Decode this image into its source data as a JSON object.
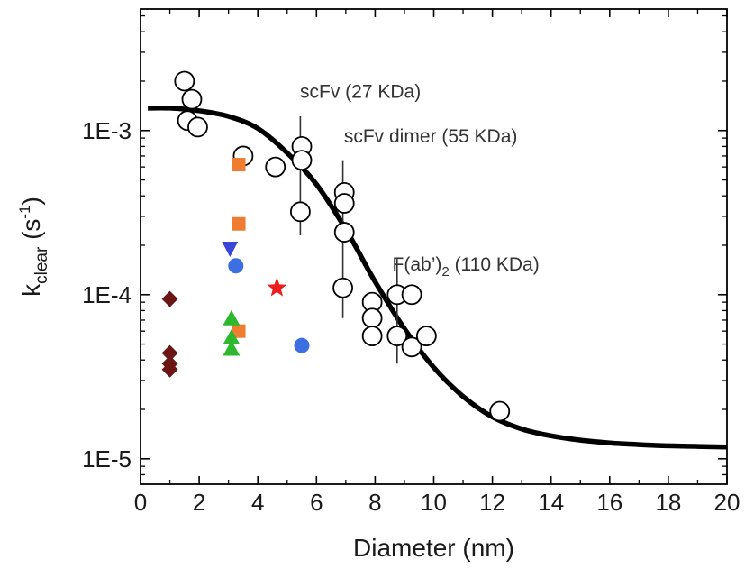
{
  "chart_data": {
    "type": "scatter",
    "title": "",
    "xlabel": "Diameter (nm)",
    "ylabel": {
      "main": "k",
      "sub": "clear",
      "units_pre": " (s",
      "units_sup": "-1",
      "units_post": ")"
    },
    "xlim": [
      0,
      20
    ],
    "ylim": [
      7e-06,
      0.0055
    ],
    "yscale": "log",
    "grid": false,
    "x_ticks": [
      0,
      2,
      4,
      6,
      8,
      10,
      12,
      14,
      16,
      18,
      20
    ],
    "x_tick_labels": [
      "0",
      "2",
      "4",
      "6",
      "8",
      "10",
      "12",
      "14",
      "16",
      "18",
      "20"
    ],
    "y_ticks": [
      1e-05,
      0.0001,
      0.001
    ],
    "y_tick_labels": [
      "1E-5",
      "1E-4",
      "1E-3"
    ],
    "fit_curve": {
      "color": "#000000",
      "points": [
        [
          0.25,
          0.00137
        ],
        [
          1,
          0.00137
        ],
        [
          2,
          0.00132
        ],
        [
          3,
          0.00122
        ],
        [
          4,
          0.00103
        ],
        [
          5,
          0.00073
        ],
        [
          6,
          0.00047
        ],
        [
          7,
          0.00025
        ],
        [
          8,
          0.00012
        ],
        [
          9,
          6.2e-05
        ],
        [
          10,
          3.6e-05
        ],
        [
          11,
          2.4e-05
        ],
        [
          12,
          1.8e-05
        ],
        [
          13,
          1.52e-05
        ],
        [
          14,
          1.38e-05
        ],
        [
          15,
          1.3e-05
        ],
        [
          16,
          1.25e-05
        ],
        [
          17,
          1.22e-05
        ],
        [
          18,
          1.2e-05
        ],
        [
          19,
          1.19e-05
        ],
        [
          20,
          1.18e-05
        ]
      ]
    },
    "series": [
      {
        "marker": "circle-open",
        "color": "#000000",
        "points": [
          [
            1.5,
            0.002
          ],
          [
            1.75,
            0.00155
          ],
          [
            1.6,
            0.00115
          ],
          [
            1.95,
            0.00105
          ],
          [
            3.5,
            0.0007
          ],
          [
            4.6,
            0.0006
          ],
          [
            5.5,
            0.0008
          ],
          [
            5.5,
            0.00066
          ],
          [
            5.45,
            0.00032
          ],
          [
            6.95,
            0.00042
          ],
          [
            6.95,
            0.00036
          ],
          [
            6.95,
            0.00024
          ],
          [
            6.9,
            0.00011
          ],
          [
            7.9,
            9e-05
          ],
          [
            7.9,
            7.2e-05
          ],
          [
            7.9,
            5.6e-05
          ],
          [
            8.75,
            0.0001
          ],
          [
            8.75,
            5.6e-05
          ],
          [
            9.25,
            0.0001
          ],
          [
            9.25,
            4.8e-05
          ],
          [
            9.75,
            5.6e-05
          ],
          [
            12.25,
            1.95e-05
          ]
        ]
      },
      {
        "marker": "square",
        "color": "#ef7d31",
        "points": [
          [
            3.35,
            0.00062
          ],
          [
            3.35,
            0.00027
          ],
          [
            3.35,
            6e-05
          ]
        ]
      },
      {
        "marker": "triangle-down",
        "color": "#3b46d9",
        "points": [
          [
            3.05,
            0.00019
          ]
        ]
      },
      {
        "marker": "circle",
        "color": "#3b6fe2",
        "points": [
          [
            3.25,
            0.00015
          ],
          [
            5.5,
            4.9e-05
          ]
        ]
      },
      {
        "marker": "star",
        "color": "#ee1c1c",
        "points": [
          [
            4.65,
            0.00011
          ]
        ]
      },
      {
        "marker": "triangle-up",
        "color": "#2db82d",
        "points": [
          [
            3.1,
            7.2e-05
          ],
          [
            3.1,
            5.5e-05
          ],
          [
            3.1,
            4.7e-05
          ]
        ]
      },
      {
        "marker": "diamond",
        "color": "#6b1515",
        "points": [
          [
            1.0,
            9.4e-05
          ],
          [
            1.0,
            4.4e-05
          ],
          [
            1.0,
            3.8e-05
          ],
          [
            1.0,
            3.5e-05
          ]
        ]
      }
    ],
    "error_bars": [
      {
        "x": 5.45,
        "y_low": 0.00023,
        "y_high": 0.00122
      },
      {
        "x": 6.9,
        "y_low": 7.2e-05,
        "y_high": 0.00066
      },
      {
        "x": 8.75,
        "y_low": 3.8e-05,
        "y_high": 0.000165
      }
    ],
    "annotations": [
      {
        "text": "scFv (27 KDa)",
        "x": 5.5,
        "y": 0.00158
      },
      {
        "text": "scFv dimer (55 KDa)",
        "x": 7.0,
        "y": 0.000845
      },
      {
        "text": "F(ab’)",
        "sub": "2",
        "text_after": " (110 KDa)",
        "x": 8.65,
        "y": 0.00014
      }
    ]
  }
}
